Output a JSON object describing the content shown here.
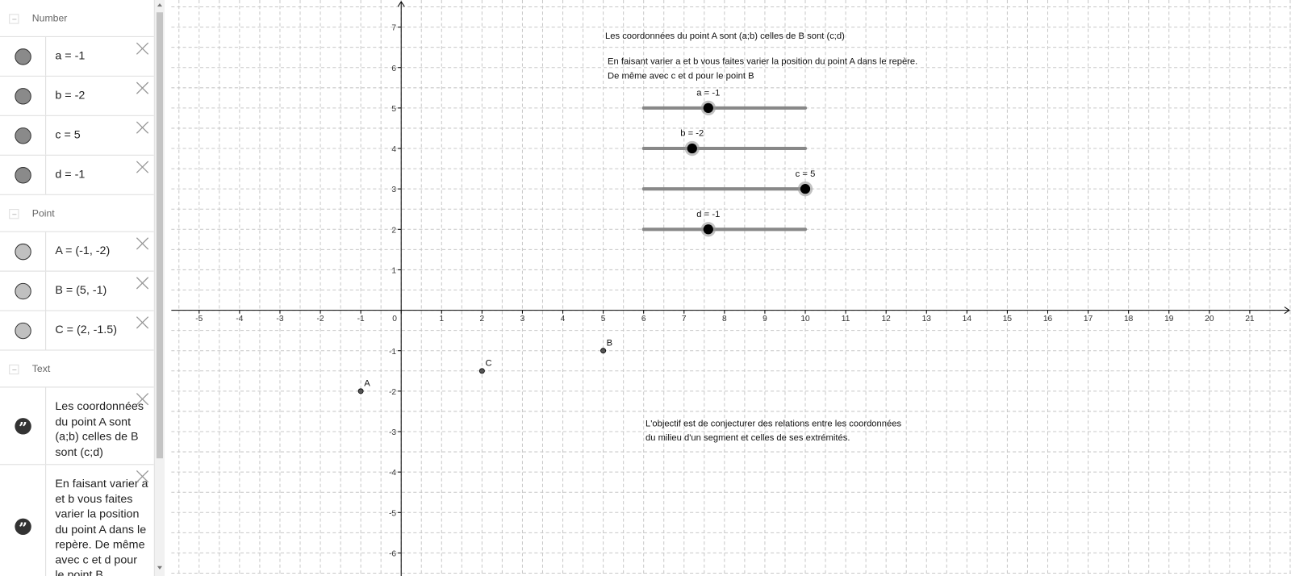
{
  "algebra": {
    "groups": [
      {
        "title": "Number",
        "items": [
          "a = -1",
          "b = -2",
          "c = 5",
          "d = -1"
        ]
      },
      {
        "title": "Point",
        "items": [
          "A = (-1, -2)",
          "B = (5, -1)",
          "C = (2, -1.5)"
        ]
      },
      {
        "title": "Text",
        "items": [
          "Les coordonnées du point A sont (a;b) celles de B sont (c;d)",
          "En faisant varier a et b vous faites varier la position du point A dans le repère. De même avec c et d pour le point B"
        ]
      }
    ]
  },
  "graphics": {
    "xlim": [
      -5.69,
      22.02
    ],
    "ylim": [
      -6.57,
      7.67
    ],
    "xticks": [
      -5,
      -4,
      -3,
      -2,
      -1,
      0,
      1,
      2,
      3,
      4,
      5,
      6,
      7,
      8,
      9,
      10,
      11,
      12,
      13,
      14,
      15,
      16,
      17,
      18,
      19,
      20,
      21
    ],
    "yticks": [
      -6,
      -5,
      -4,
      -3,
      -2,
      -1,
      1,
      2,
      3,
      4,
      5,
      6,
      7
    ],
    "points": [
      {
        "name": "A",
        "x": -1,
        "y": -2
      },
      {
        "name": "B",
        "x": 5,
        "y": -1
      },
      {
        "name": "C",
        "x": 2,
        "y": -1.5
      }
    ],
    "sliders": [
      {
        "label": "a = -1",
        "value": -1
      },
      {
        "label": "b = -2",
        "value": -2
      },
      {
        "label": "c = 5",
        "value": 5
      },
      {
        "label": "d = -1",
        "value": -1
      }
    ],
    "texts": [
      {
        "lines": [
          "Les coordonnées du point A sont (a;b) celles de B sont (c;d)"
        ]
      },
      {
        "lines": [
          "En faisant varier a et b vous faites varier la position du point A dans le repère.",
          "De même avec c et d pour le point B"
        ]
      },
      {
        "lines": [
          "L'objectif est de conjecturer des relations entre les coordonnées",
          "du milieu d'un segment et celles de ses extrémités."
        ]
      }
    ]
  }
}
